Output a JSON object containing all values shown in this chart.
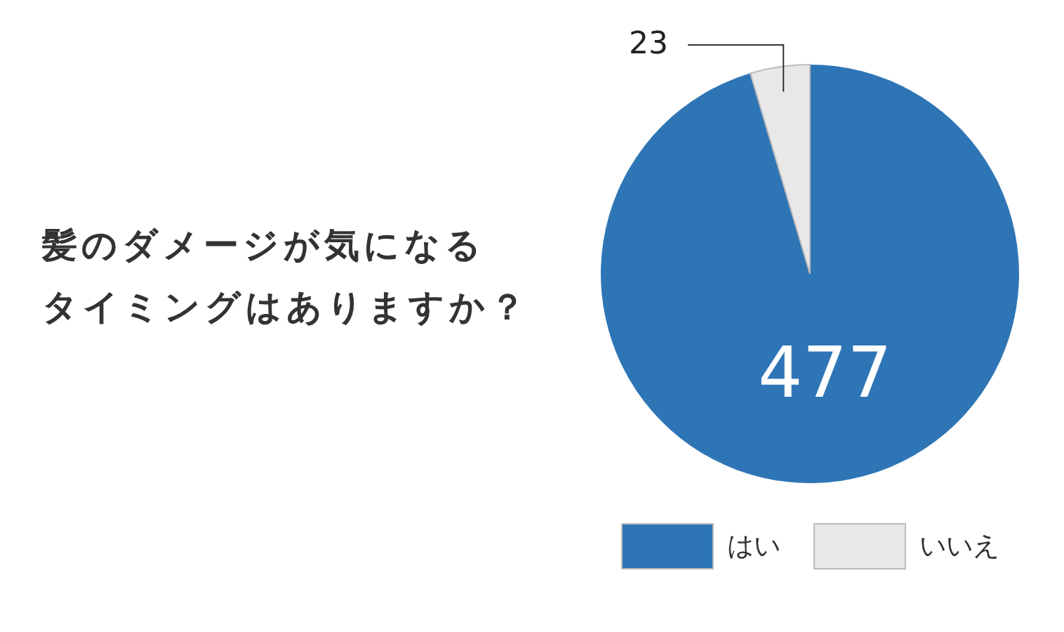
{
  "chart_data": {
    "type": "pie",
    "title": "髪のダメージが気になるタイミングはありますか？",
    "categories": [
      "はい",
      "いいえ"
    ],
    "values": [
      477,
      23
    ],
    "colors": [
      "#2e75b6",
      "#e8e8e8"
    ],
    "data_labels": true,
    "legend": "bottom"
  }
}
